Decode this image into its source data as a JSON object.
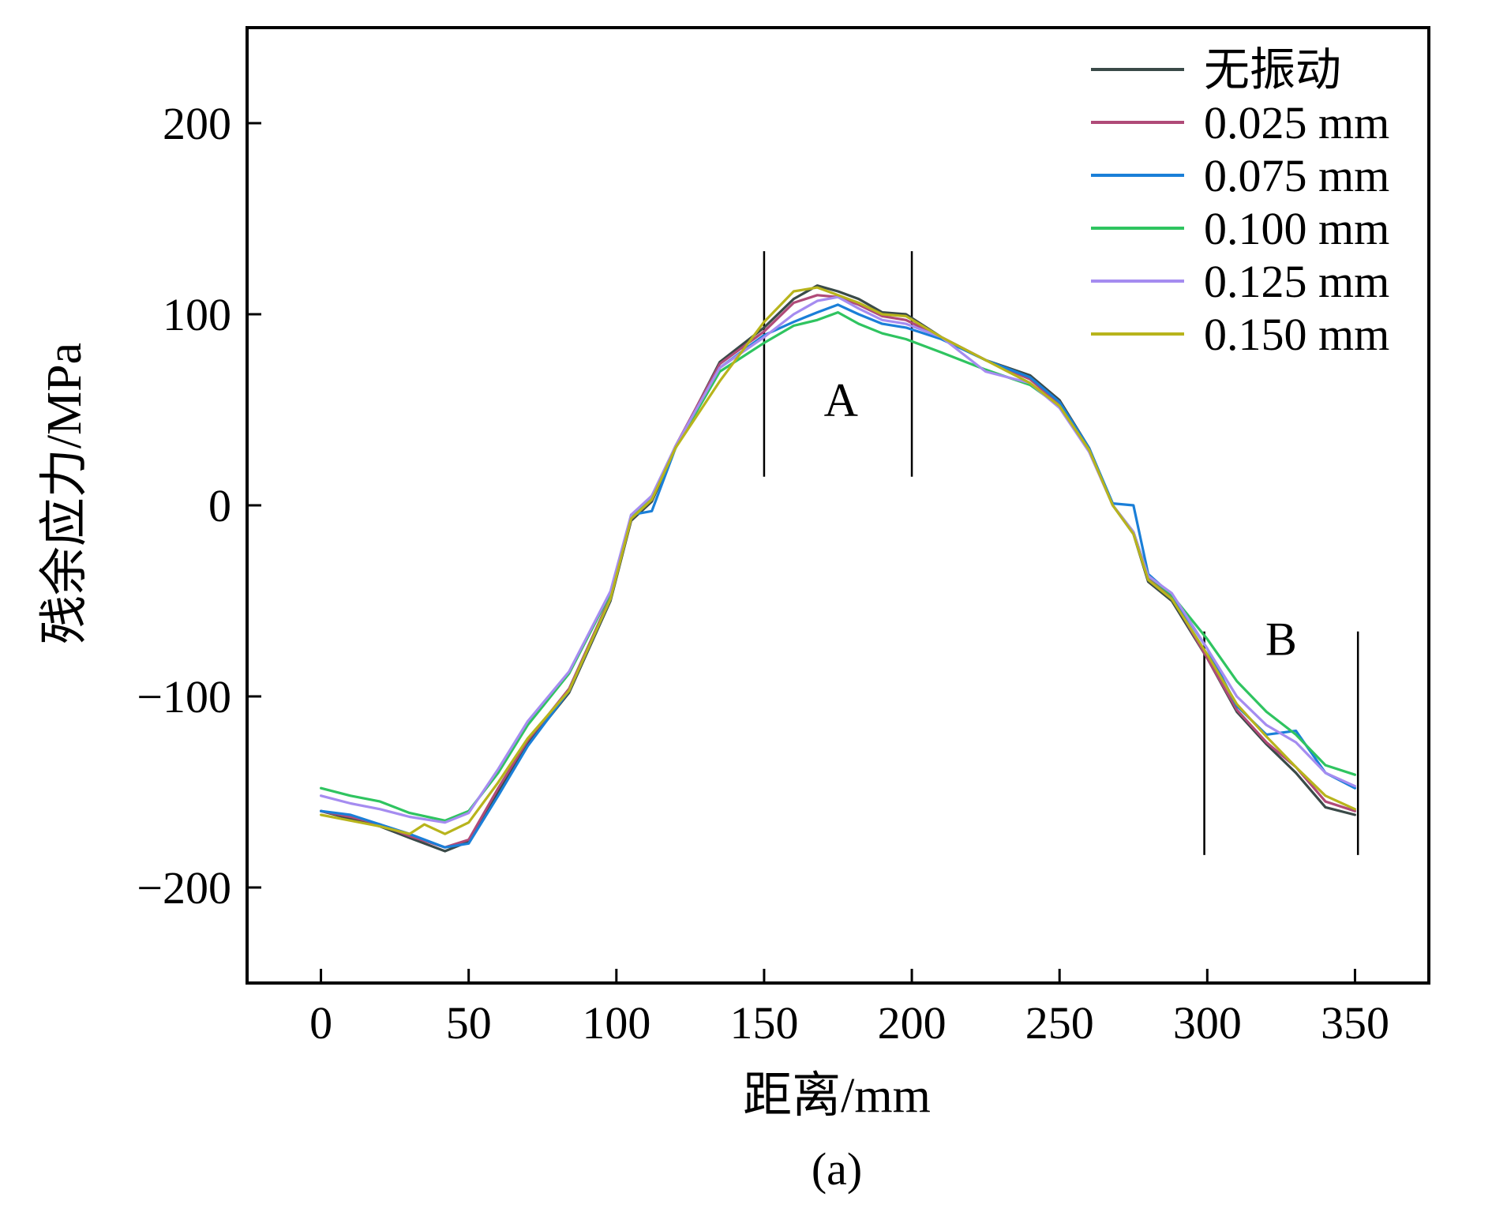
{
  "chart_data": {
    "type": "line",
    "caption": "(a)",
    "xlabel": "距离/mm",
    "ylabel": "残余应力/MPa",
    "xlim": [
      -25,
      375
    ],
    "ylim": [
      -250,
      250
    ],
    "xticks": [
      0,
      50,
      100,
      150,
      200,
      250,
      300,
      350
    ],
    "yticks": [
      -200,
      -100,
      0,
      100,
      200
    ],
    "xtick_labels": [
      "0",
      "50",
      "100",
      "150",
      "200",
      "250",
      "300",
      "350"
    ],
    "ytick_labels": [
      "−200",
      "−100",
      "0",
      "100",
      "200"
    ],
    "legend_position": "top-right",
    "grid": false,
    "regions": [
      {
        "label": "A",
        "x": [
          150,
          200
        ],
        "y_range": [
          15,
          133
        ],
        "label_at": [
          176,
          55
        ]
      },
      {
        "label": "B",
        "x": [
          299,
          351
        ],
        "y_range": [
          -183,
          -66
        ],
        "label_at": [
          325,
          -70
        ]
      }
    ],
    "series": [
      {
        "name": "无振动",
        "color": "#3a4a48",
        "x": [
          0,
          10,
          20,
          30,
          42,
          50,
          60,
          70,
          84,
          98,
          105,
          112,
          120,
          135,
          150,
          160,
          168,
          175,
          182,
          190,
          198,
          210,
          225,
          240,
          250,
          260,
          268,
          275,
          280,
          288,
          300,
          310,
          320,
          330,
          340,
          350
        ],
        "y": [
          -160,
          -164,
          -168,
          -174,
          -181,
          -176,
          -150,
          -125,
          -98,
          -50,
          -8,
          2,
          30,
          75,
          93,
          108,
          115,
          112,
          108,
          101,
          100,
          88,
          76,
          68,
          55,
          30,
          0,
          -15,
          -40,
          -50,
          -80,
          -108,
          -125,
          -140,
          -158,
          -162
        ]
      },
      {
        "name": "0.025 mm",
        "color": "#b04a78",
        "x": [
          0,
          10,
          20,
          30,
          42,
          50,
          60,
          70,
          84,
          98,
          105,
          112,
          120,
          135,
          150,
          160,
          168,
          175,
          182,
          190,
          198,
          210,
          225,
          240,
          250,
          260,
          268,
          275,
          280,
          288,
          300,
          310,
          320,
          330,
          340,
          350
        ],
        "y": [
          -160,
          -163,
          -167,
          -173,
          -179,
          -175,
          -148,
          -123,
          -96,
          -48,
          -7,
          3,
          31,
          74,
          91,
          106,
          110,
          109,
          105,
          99,
          97,
          88,
          76,
          66,
          53,
          30,
          0,
          -14,
          -38,
          -48,
          -80,
          -107,
          -124,
          -137,
          -155,
          -160
        ]
      },
      {
        "name": "0.075 mm",
        "color": "#1a7fd8",
        "x": [
          0,
          10,
          20,
          30,
          42,
          50,
          60,
          70,
          84,
          98,
          105,
          112,
          120,
          135,
          150,
          160,
          168,
          175,
          182,
          190,
          198,
          210,
          225,
          240,
          250,
          260,
          268,
          275,
          280,
          288,
          300,
          310,
          320,
          330,
          340,
          350
        ],
        "y": [
          -160,
          -162,
          -167,
          -172,
          -179,
          -177,
          -152,
          -126,
          -97,
          -49,
          -5,
          -3,
          30,
          72,
          89,
          96,
          101,
          105,
          100,
          95,
          93,
          87,
          76,
          67,
          54,
          30,
          1,
          0,
          -36,
          -47,
          -75,
          -105,
          -120,
          -118,
          -140,
          -148
        ]
      },
      {
        "name": "0.100 mm",
        "color": "#2fc460",
        "x": [
          0,
          10,
          20,
          30,
          42,
          50,
          60,
          70,
          84,
          98,
          105,
          112,
          120,
          135,
          150,
          160,
          168,
          175,
          182,
          190,
          198,
          210,
          225,
          240,
          250,
          260,
          268,
          275,
          280,
          288,
          300,
          310,
          320,
          330,
          340,
          350
        ],
        "y": [
          -148,
          -152,
          -155,
          -161,
          -165,
          -160,
          -140,
          -115,
          -88,
          -46,
          -6,
          5,
          30,
          70,
          85,
          94,
          97,
          101,
          95,
          90,
          87,
          80,
          71,
          63,
          52,
          29,
          0,
          -14,
          -37,
          -47,
          -70,
          -92,
          -108,
          -120,
          -136,
          -141
        ]
      },
      {
        "name": "0.125 mm",
        "color": "#a58cf0",
        "x": [
          0,
          10,
          20,
          30,
          42,
          50,
          60,
          70,
          84,
          98,
          105,
          112,
          120,
          135,
          150,
          160,
          168,
          175,
          182,
          190,
          198,
          210,
          225,
          240,
          250,
          260,
          268,
          275,
          280,
          288,
          300,
          310,
          320,
          330,
          340,
          350
        ],
        "y": [
          -152,
          -156,
          -159,
          -163,
          -166,
          -161,
          -138,
          -113,
          -87,
          -45,
          -5,
          5,
          31,
          72,
          88,
          100,
          107,
          109,
          103,
          97,
          95,
          88,
          70,
          64,
          51,
          28,
          0,
          -14,
          -37,
          -46,
          -75,
          -100,
          -115,
          -124,
          -140,
          -147
        ]
      },
      {
        "name": "0.150 mm",
        "color": "#b8b41c",
        "x": [
          0,
          10,
          20,
          30,
          35,
          42,
          50,
          60,
          70,
          84,
          98,
          105,
          112,
          120,
          135,
          150,
          160,
          168,
          175,
          182,
          190,
          198,
          210,
          225,
          240,
          250,
          260,
          268,
          275,
          280,
          288,
          300,
          310,
          320,
          330,
          340,
          350
        ],
        "y": [
          -162,
          -165,
          -168,
          -172,
          -167,
          -172,
          -166,
          -145,
          -122,
          -97,
          -49,
          -7,
          3,
          30,
          65,
          96,
          112,
          114,
          110,
          106,
          100,
          99,
          88,
          76,
          64,
          52,
          29,
          0,
          -15,
          -39,
          -49,
          -78,
          -104,
          -121,
          -137,
          -152,
          -159
        ]
      }
    ]
  }
}
